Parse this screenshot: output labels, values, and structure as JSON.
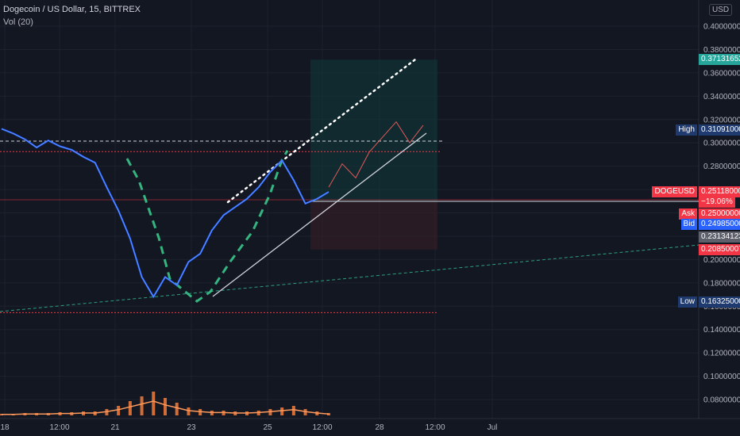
{
  "header": {
    "symbol_line": "Dogecoin / US Dollar, 15, BITTREX",
    "indicator": "Vol (20)"
  },
  "axis_currency": "USD",
  "colors": {
    "background": "#131722",
    "grid": "#1e222d",
    "price_line": "#2962ff",
    "green_dash": "#2e9e7e",
    "red_dotted": "#f23645",
    "volume": "#f57c3c",
    "long_zone": "#0f3a3a",
    "short_zone": "#3a1f27"
  },
  "chart_data": {
    "type": "line",
    "title": "Dogecoin / US Dollar, 15, BITTREX",
    "ylim": [
      0.06,
      0.42
    ],
    "y_ticks": [
      "0.40000000",
      "0.38000000",
      "0.36000000",
      "0.34000000",
      "0.32000000",
      "0.30000000",
      "0.28000000",
      "0.26000000",
      "0.24000000",
      "0.22000000",
      "0.20000000",
      "0.18000000",
      "0.16000000",
      "0.14000000",
      "0.12000000",
      "0.10000000",
      "0.08000000"
    ],
    "x_ticks": [
      "18",
      "12:00",
      "21",
      "23",
      "25",
      "12:00",
      "28",
      "12:00",
      "Jul"
    ],
    "series": [
      {
        "x": [
          0,
          1,
          2,
          3,
          4,
          5,
          6,
          7,
          8,
          9,
          10,
          11,
          12,
          13,
          14,
          15,
          16,
          17,
          18,
          19,
          20,
          21,
          22,
          23,
          24,
          25,
          26,
          27,
          28
        ],
        "values": [
          0.312,
          0.308,
          0.303,
          0.296,
          0.302,
          0.297,
          0.294,
          0.288,
          0.283,
          0.262,
          0.242,
          0.218,
          0.185,
          0.168,
          0.185,
          0.178,
          0.198,
          0.205,
          0.225,
          0.238,
          0.245,
          0.252,
          0.262,
          0.275,
          0.285,
          0.268,
          0.248,
          0.252,
          0.258
        ]
      }
    ],
    "projection": {
      "x": [
        28,
        29,
        30,
        31,
        32,
        33,
        34,
        35
      ],
      "values": [
        0.262,
        0.282,
        0.27,
        0.292,
        0.305,
        0.318,
        0.3,
        0.315
      ]
    },
    "volume": [
      2,
      2,
      3,
      3,
      3,
      4,
      4,
      5,
      5,
      8,
      12,
      18,
      24,
      30,
      22,
      16,
      10,
      8,
      6,
      6,
      5,
      5,
      6,
      8,
      10,
      12,
      8,
      5,
      3
    ],
    "levels": [
      {
        "label": "",
        "value": 0.371316
      },
      {
        "label": "High",
        "value": 0.31091
      },
      {
        "label": "DOGEUSD",
        "value": 0.25118,
        "change": "−19.06%"
      },
      {
        "label": "Ask",
        "value": 0.25
      },
      {
        "label": "Bid",
        "value": 0.24985
      },
      {
        "label": "",
        "value": 0.231341
      },
      {
        "label": "",
        "value": 0.2085
      },
      {
        "label": "Low",
        "value": 0.16325
      }
    ],
    "price_tags": {
      "top": "0.37131652",
      "high": "0.31091000",
      "last": "0.25118000",
      "change": "−19.06%",
      "ask": "0.25000000",
      "bid": "0.24985000",
      "mid": "0.23134123",
      "stop": "0.20850007",
      "low": "0.16325000"
    },
    "tag_labels": {
      "high": "High",
      "last": "DOGEUSD",
      "ask": "Ask",
      "bid": "Bid",
      "low": "Low"
    }
  }
}
